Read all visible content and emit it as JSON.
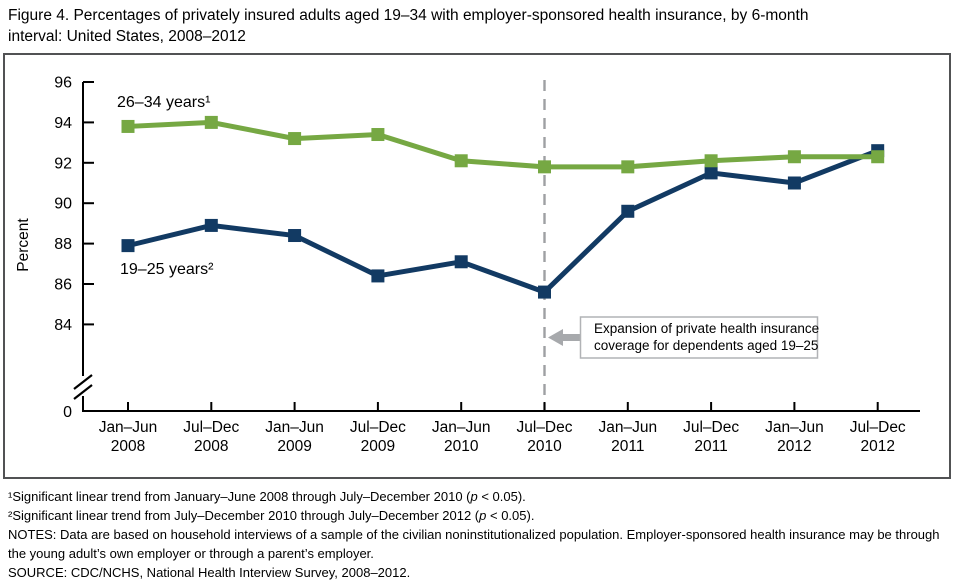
{
  "figure": {
    "title_lines": [
      "Figure 4. Percentages of privately insured adults aged 19–34 with employer-sponsored health insurance, by 6-month",
      "interval: United States, 2008–2012"
    ]
  },
  "chart_data": {
    "type": "line",
    "title": "Figure 4. Percentages of privately insured adults aged 19–34 with employer-sponsored health insurance, by 6-month interval: United States, 2008–2012",
    "ylabel": "Percent",
    "xlabel": "",
    "categories": [
      [
        "Jan–Jun",
        "2008"
      ],
      [
        "Jul–Dec",
        "2008"
      ],
      [
        "Jan–Jun",
        "2009"
      ],
      [
        "Jul–Dec",
        "2009"
      ],
      [
        "Jan–Jun",
        "2010"
      ],
      [
        "Jul–Dec",
        "2010"
      ],
      [
        "Jan–Jun",
        "2011"
      ],
      [
        "Jul–Dec",
        "2011"
      ],
      [
        "Jan–Jun",
        "2012"
      ],
      [
        "Jul–Dec",
        "2012"
      ]
    ],
    "yticks": [
      96,
      94,
      92,
      90,
      88,
      86,
      84
    ],
    "ylim": [
      84,
      96
    ],
    "y_axis_break_to_zero": true,
    "baseline_label": "0",
    "grid": false,
    "legend_position": "inline labels beside lines",
    "series": [
      {
        "name": "26–34 years¹",
        "color": "#76A843",
        "marker": "square",
        "values": [
          93.8,
          94.0,
          93.2,
          93.4,
          92.1,
          91.8,
          91.8,
          92.1,
          92.3,
          92.3
        ]
      },
      {
        "name": "19–25 years²",
        "color": "#123A63",
        "marker": "square",
        "values": [
          87.9,
          88.9,
          88.4,
          86.4,
          87.1,
          85.6,
          89.6,
          91.5,
          91.0,
          92.6
        ]
      }
    ],
    "reference_line": {
      "category": "Jul–Dec 2010",
      "category_index": 5,
      "style": "dashed",
      "color": "#9EA0A3"
    },
    "annotation": {
      "text_lines": [
        "Expansion of private health insurance",
        "coverage for dependents aged 19–25"
      ],
      "arrow": "left-pointing",
      "arrow_color": "#A7A9AC",
      "box_border_color": "#B1B3B6"
    }
  },
  "footnotes": {
    "fn1_pre": "¹Significant linear trend from January–June 2008 through July–December 2010 (",
    "fn1_italic": "p",
    "fn1_post": " < 0.05).",
    "fn2_pre": "²Significant linear trend from July–December 2010 through July–December 2012 (",
    "fn2_italic": "p",
    "fn2_post": " < 0.05).",
    "notes": "NOTES: Data are based on household interviews of a sample of the civilian noninstitutionalized population. Employer-sponsored health insurance may be through the young adult’s own employer or through a parent’s employer.",
    "source": "SOURCE: CDC/NCHS, National Health Interview Survey, 2008–2012."
  }
}
